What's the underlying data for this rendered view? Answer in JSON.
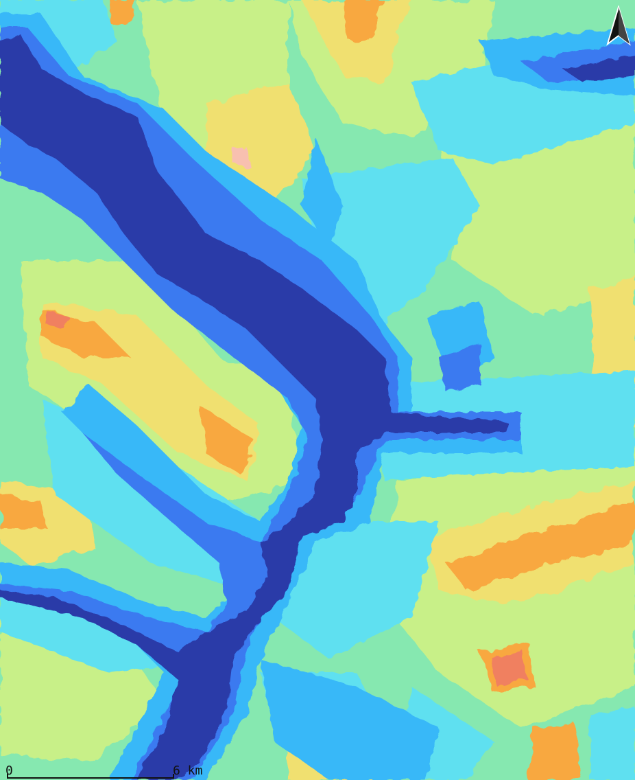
{
  "map": {
    "scale_start_label": "0",
    "scale_end_label": "6 km",
    "north_arrow_icon": "north-arrow-icon"
  },
  "colors": {
    "water": "#2a3aa8",
    "shore": "#3a7af0",
    "low": "#38b8f8",
    "low_mid": "#5ee0f0",
    "mid": "#86e8b0",
    "mid_high": "#c8f088",
    "high": "#f0e070",
    "higher": "#f8a840",
    "peak": "#f08060"
  }
}
